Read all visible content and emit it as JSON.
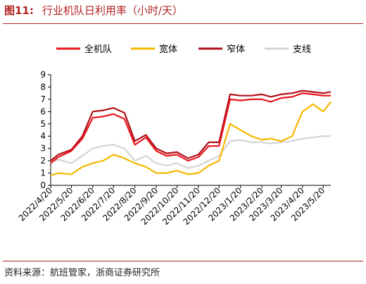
{
  "header": {
    "figure_label": "图11:",
    "title": "行业机队日利用率（小时/天）"
  },
  "footer": {
    "source": "资料来源：航班管家，浙商证券研究所"
  },
  "chart_data": {
    "type": "line",
    "title": "行业机队日利用率（小时/天）",
    "xlabel": "",
    "ylabel": "",
    "ylim": [
      0,
      9
    ],
    "yticks": [
      0,
      1,
      2,
      3,
      4,
      5,
      6,
      7,
      8,
      9
    ],
    "grid": false,
    "legend_position": "top",
    "x_start": "2022/4/20",
    "x_end": "2023/5/31",
    "x_tick_labels": [
      "2022/4/20",
      "2022/5/20",
      "2022/6/20",
      "2022/7/20",
      "2022/8/20",
      "2022/9/20",
      "2022/10/20",
      "2022/11/20",
      "2022/12/20",
      "2023/1/20",
      "2023/2/20",
      "2023/3/20",
      "2023/4/20",
      "2023/5/20"
    ],
    "x": [
      "2022/4/20",
      "2022/5/1",
      "2022/5/20",
      "2022/6/5",
      "2022/6/20",
      "2022/7/5",
      "2022/7/20",
      "2022/8/5",
      "2022/8/20",
      "2022/9/5",
      "2022/9/20",
      "2022/10/5",
      "2022/10/20",
      "2022/11/5",
      "2022/11/20",
      "2022/12/5",
      "2022/12/20",
      "2023/1/5",
      "2023/1/20",
      "2023/2/5",
      "2023/2/20",
      "2023/3/5",
      "2023/3/20",
      "2023/4/5",
      "2023/4/20",
      "2023/5/5",
      "2023/5/20",
      "2023/5/31"
    ],
    "series": [
      {
        "name": "全机队",
        "color": "#e8141c",
        "width": 2.2,
        "values": [
          1.8,
          2.3,
          2.8,
          3.8,
          5.5,
          5.6,
          5.8,
          5.4,
          3.3,
          3.9,
          2.8,
          2.4,
          2.5,
          2.0,
          2.3,
          3.2,
          3.2,
          7.0,
          6.9,
          7.0,
          7.0,
          6.8,
          7.1,
          7.2,
          7.5,
          7.4,
          7.3,
          7.3
        ]
      },
      {
        "name": "宽体",
        "color": "#f5b800",
        "width": 2.2,
        "values": [
          0.8,
          1.0,
          0.9,
          1.5,
          1.8,
          2.0,
          2.5,
          2.2,
          1.8,
          1.5,
          1.0,
          1.0,
          1.2,
          0.9,
          1.0,
          1.6,
          2.0,
          5.0,
          4.5,
          4.0,
          3.7,
          3.8,
          3.6,
          4.0,
          6.0,
          6.6,
          6.0,
          6.8
        ]
      },
      {
        "name": "窄体",
        "color": "#b00e18",
        "width": 2.2,
        "values": [
          2.0,
          2.5,
          2.9,
          4.0,
          6.0,
          6.1,
          6.3,
          5.9,
          3.6,
          4.1,
          3.0,
          2.6,
          2.7,
          2.2,
          2.5,
          3.5,
          3.5,
          7.4,
          7.3,
          7.3,
          7.4,
          7.2,
          7.4,
          7.5,
          7.7,
          7.6,
          7.5,
          7.6
        ]
      },
      {
        "name": "支线",
        "color": "#d4d4d4",
        "width": 2.2,
        "values": [
          1.9,
          2.1,
          1.8,
          2.4,
          3.0,
          3.2,
          3.3,
          3.0,
          2.0,
          2.4,
          1.8,
          1.6,
          1.8,
          1.4,
          1.6,
          2.0,
          2.4,
          3.6,
          3.7,
          3.5,
          3.5,
          3.4,
          3.5,
          3.6,
          3.8,
          3.9,
          4.0,
          4.0
        ]
      }
    ]
  }
}
